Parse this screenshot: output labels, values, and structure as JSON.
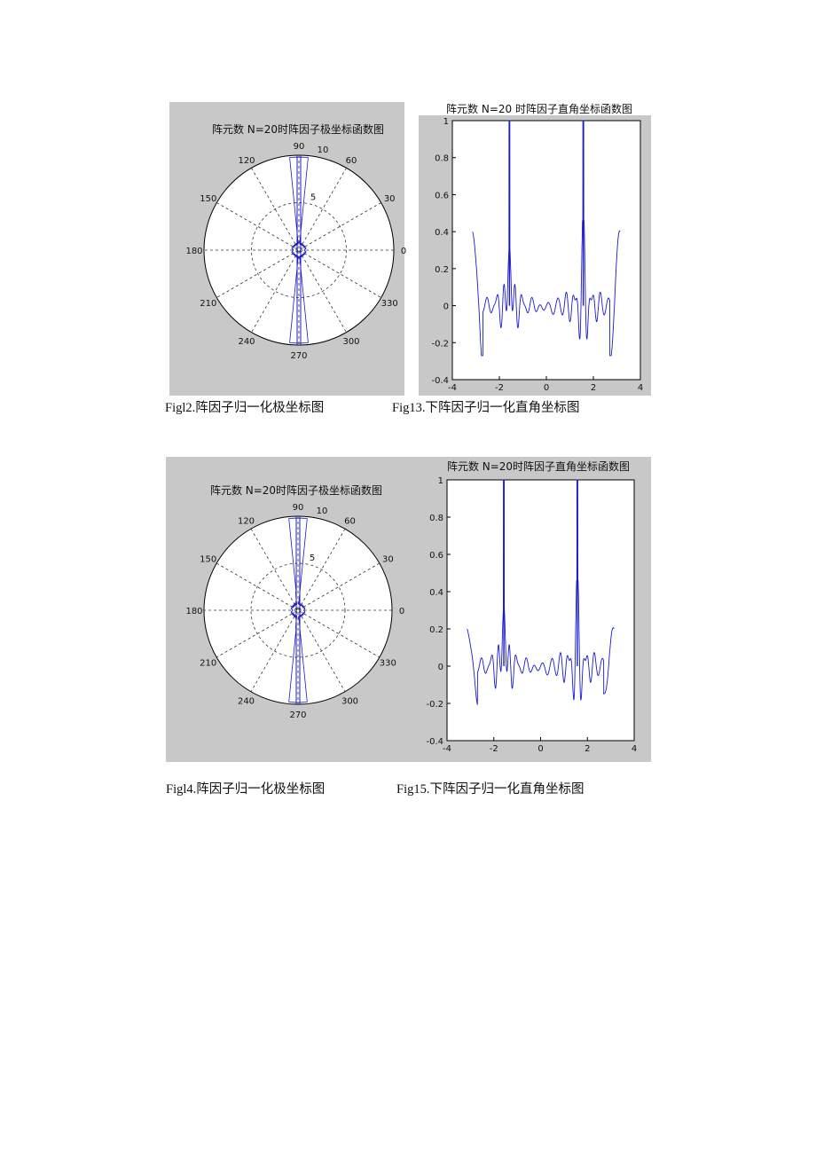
{
  "captions": {
    "fig12": "Figl2.阵因子归一化极坐标图",
    "fig13": "Fig13.下阵因子归一化直角坐标图",
    "fig14": "Figl4.阵因子归一化极坐标图",
    "fig15": "Fig15.下阵因子归一化直角坐标图"
  },
  "colors": {
    "trace": "#1a1acc",
    "panel": "#c8c8c8",
    "axes_bg": "#ffffff"
  },
  "chart_data": [
    {
      "type": "polar",
      "title": "阵元数 N=20时阵因子极坐标函数图",
      "angle_ticks": [
        "0",
        "30",
        "60",
        "90",
        "120",
        "150",
        "180",
        "210",
        "240",
        "270",
        "300",
        "330"
      ],
      "radial_ticks": [
        "5",
        "10"
      ],
      "rlim": [
        0,
        10
      ],
      "grid": true
    },
    {
      "type": "line",
      "title": "阵元数 N=20 时阵因子直角坐标函数图",
      "xlim": [
        -4,
        4
      ],
      "ylim": [
        -0.4,
        1
      ],
      "xticks": [
        "-4",
        "-2",
        "0",
        "2",
        "4"
      ],
      "yticks": [
        "-0.4",
        "-0.2",
        "0",
        "0.2",
        "0.4",
        "0.6",
        "0.8",
        "1"
      ],
      "x_range": [
        -3.14,
        3.14
      ],
      "peaks_x": [
        -1.571,
        1.571
      ],
      "peak_value": 1,
      "edge_value": 0.4,
      "min_value": -0.27
    },
    {
      "type": "polar",
      "title": "阵元数 N=20时阵因子极坐标函数图",
      "angle_ticks": [
        "0",
        "30",
        "60",
        "90",
        "120",
        "150",
        "180",
        "210",
        "240",
        "270",
        "300",
        "330"
      ],
      "radial_ticks": [
        "5",
        "10"
      ],
      "rlim": [
        0,
        10
      ],
      "grid": true
    },
    {
      "type": "line",
      "title": "阵元数 N=20时阵因子直角坐标函数图",
      "xlim": [
        -4,
        4
      ],
      "ylim": [
        -0.4,
        1
      ],
      "xticks": [
        "-4",
        "-2",
        "0",
        "2",
        "4"
      ],
      "yticks": [
        "-0.4",
        "-0.2",
        "0",
        "0.2",
        "0.4",
        "0.6",
        "0.8",
        "1"
      ],
      "x_range": [
        -3.14,
        3.14
      ],
      "peaks_x": [
        -1.571,
        1.571
      ],
      "peak_value": 1,
      "edge_value": 0.2,
      "min_value": -0.25
    }
  ]
}
